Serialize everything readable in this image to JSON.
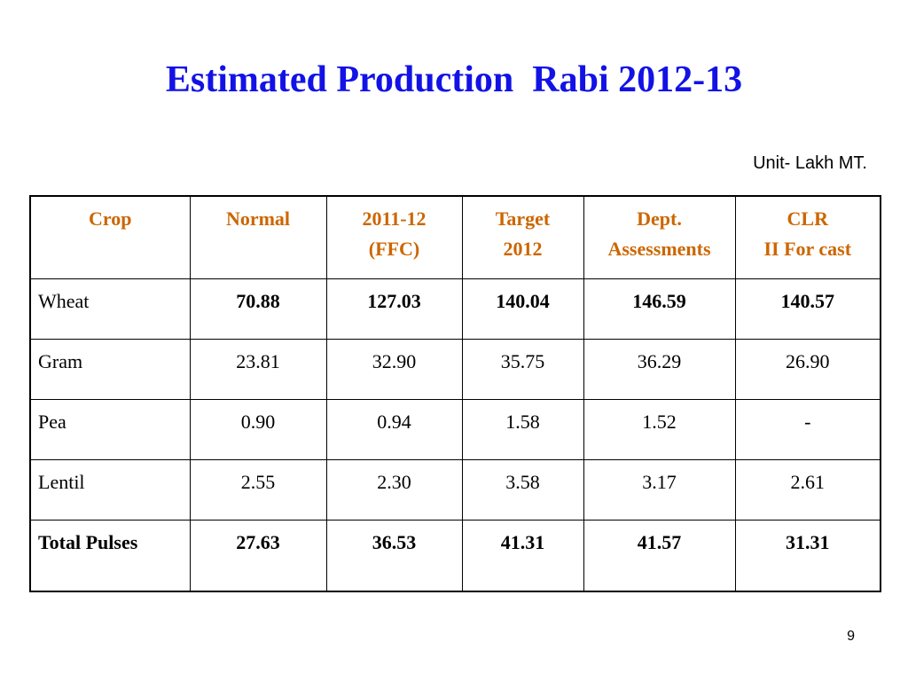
{
  "slide": {
    "title": "Estimated Production  Rabi 2012-13",
    "unit": "Unit- Lakh MT.",
    "page_number": "9"
  },
  "colors": {
    "title": "#1212e6",
    "header_text": "#cc6600",
    "body_text": "#000000",
    "border": "#000000"
  },
  "table": {
    "headers": [
      {
        "lines": [
          "Crop"
        ]
      },
      {
        "lines": [
          "Normal"
        ]
      },
      {
        "lines": [
          "2011-12",
          "(FFC)"
        ]
      },
      {
        "lines": [
          "Target",
          "2012"
        ]
      },
      {
        "lines": [
          "Dept.",
          "Assessments"
        ]
      },
      {
        "lines": [
          "CLR",
          "II For cast"
        ]
      }
    ],
    "rows": [
      {
        "crop": "Wheat",
        "values": [
          "70.88",
          "127.03",
          "140.04",
          "146.59",
          "140.57"
        ],
        "bold_values": true,
        "bold_crop": false
      },
      {
        "crop": "Gram",
        "values": [
          "23.81",
          "32.90",
          "35.75",
          "36.29",
          "26.90"
        ],
        "bold_values": false,
        "bold_crop": false
      },
      {
        "crop": "Pea",
        "values": [
          "0.90",
          "0.94",
          "1.58",
          "1.52",
          "-"
        ],
        "bold_values": false,
        "bold_crop": false
      },
      {
        "crop": "Lentil",
        "values": [
          "2.55",
          "2.30",
          "3.58",
          "3.17",
          "2.61"
        ],
        "bold_values": false,
        "bold_crop": false
      },
      {
        "crop": "Total Pulses",
        "values": [
          "27.63",
          "36.53",
          "41.31",
          "41.57",
          "31.31"
        ],
        "bold_values": true,
        "bold_crop": true
      }
    ]
  }
}
